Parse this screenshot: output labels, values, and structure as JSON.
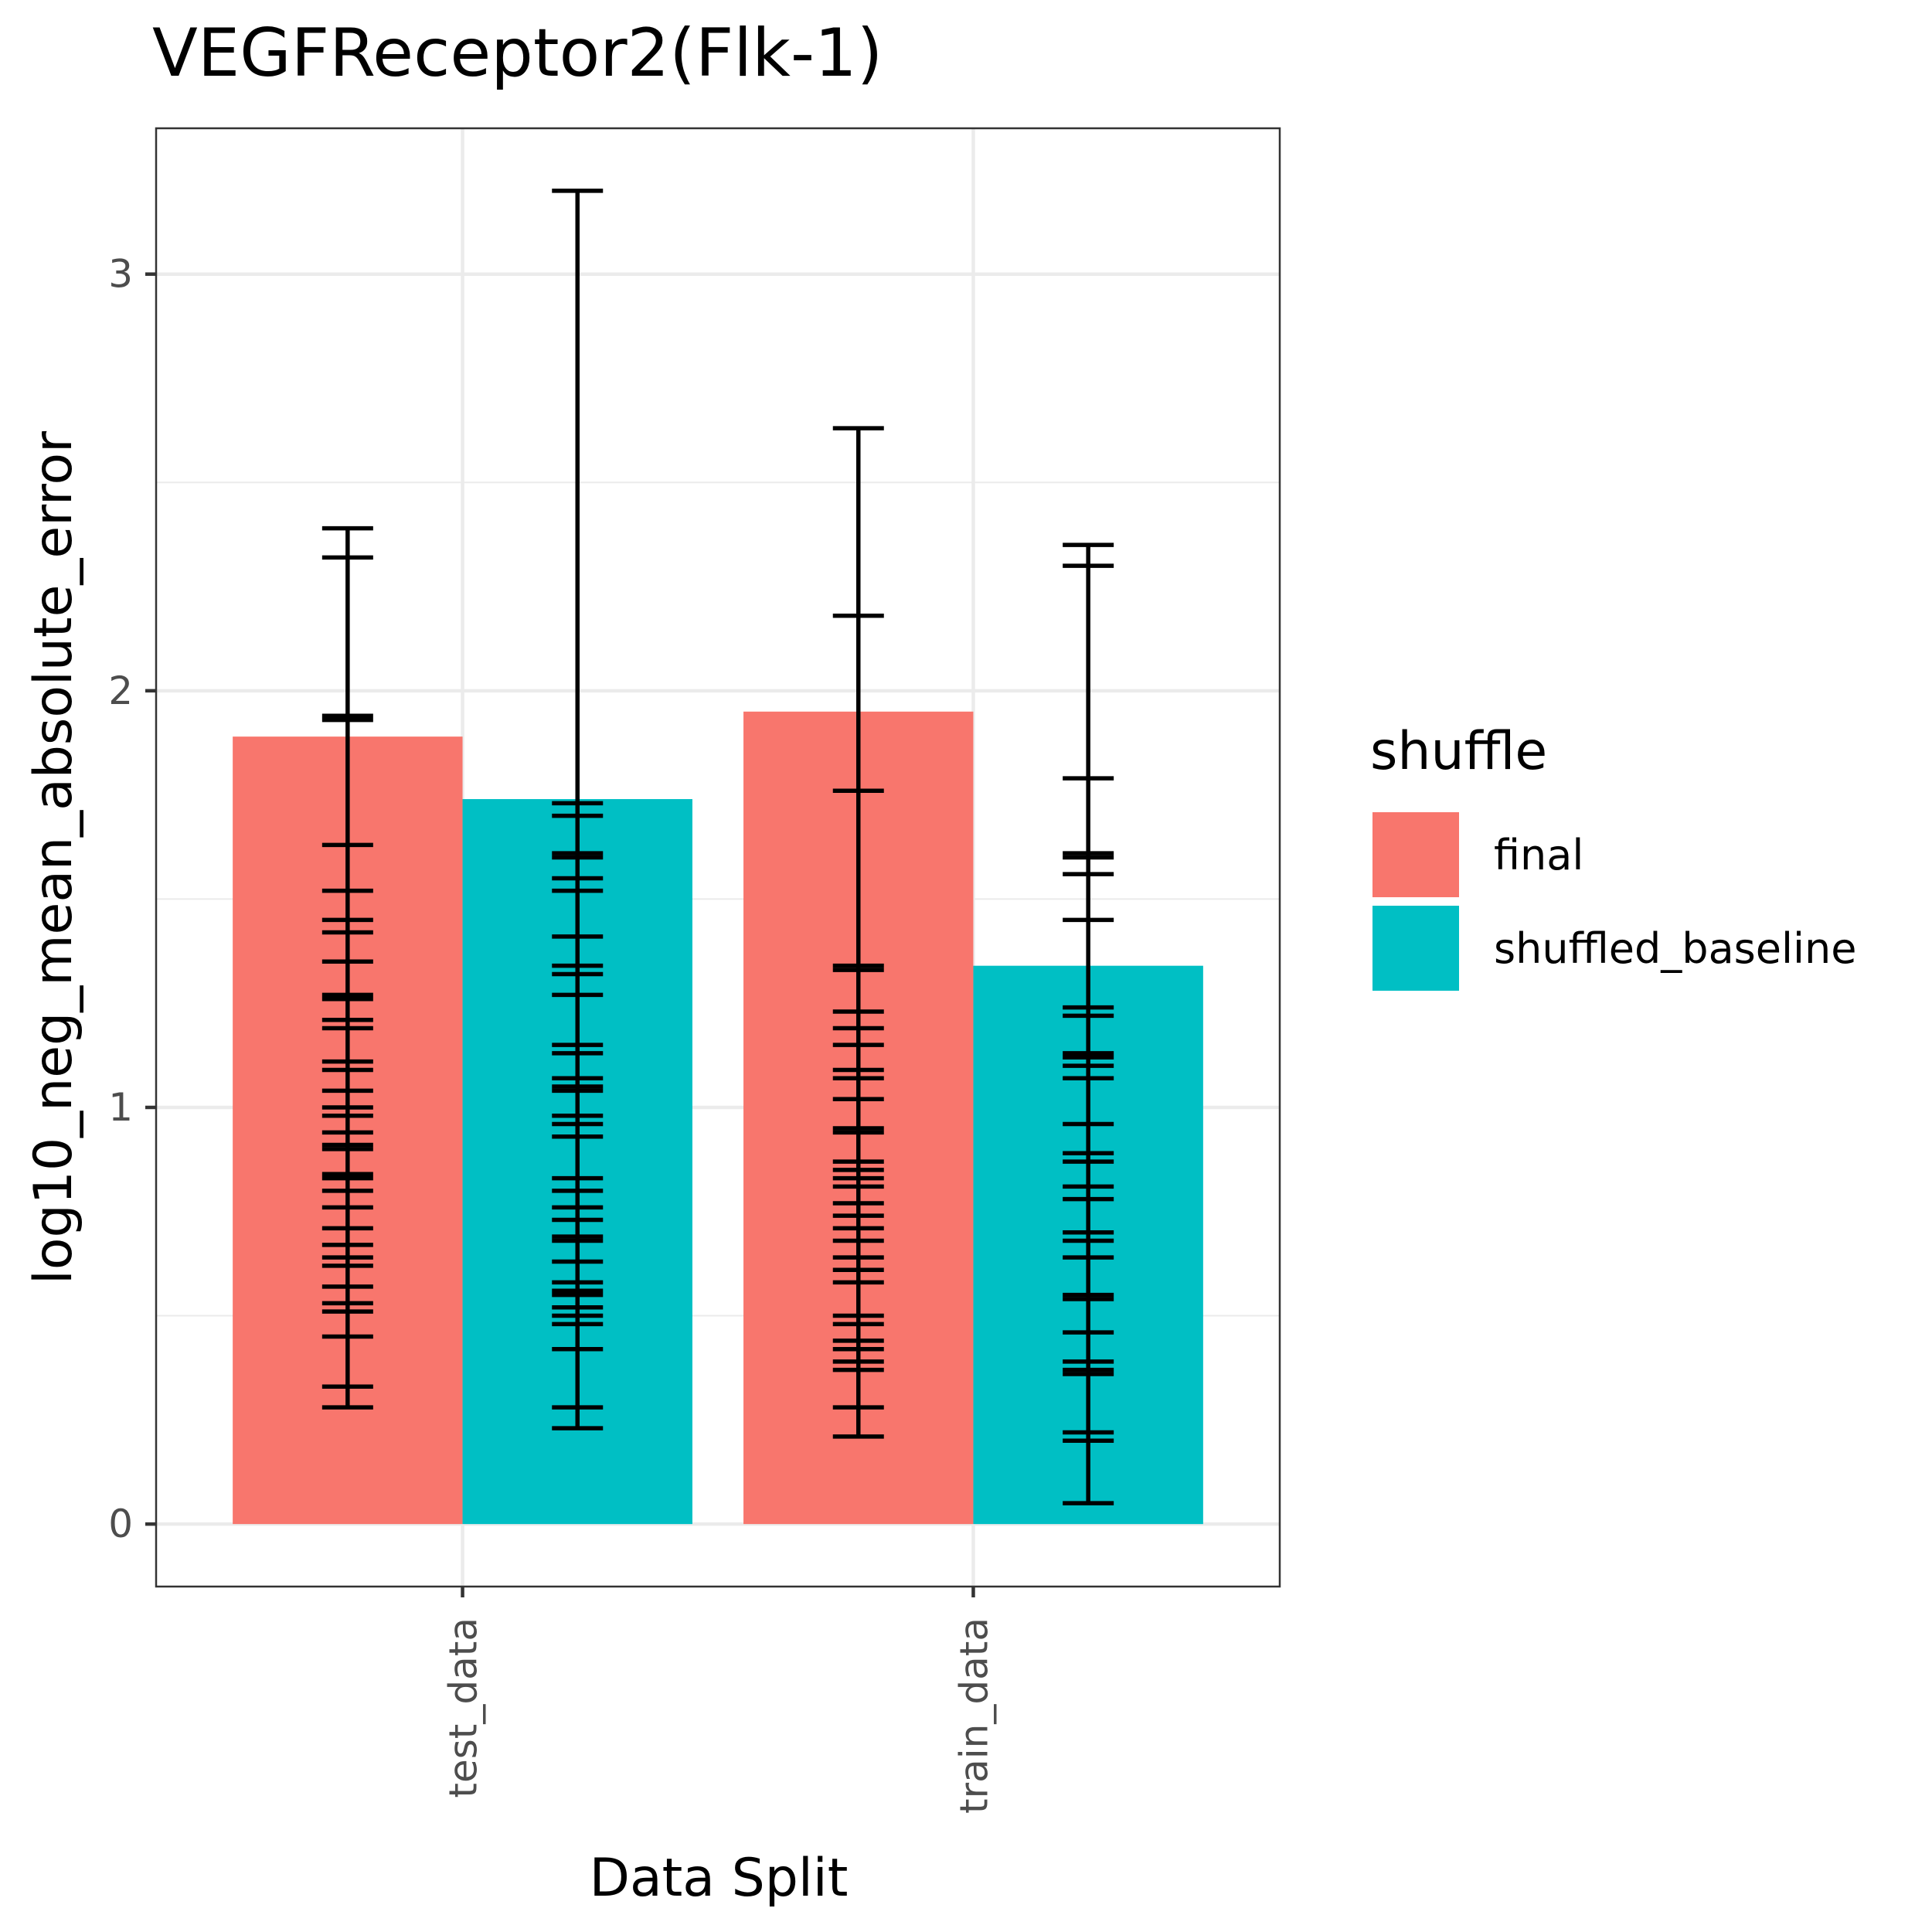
{
  "chart_data": {
    "type": "bar",
    "title": "VEGFReceptor2(Flk-1)",
    "xlabel": "Data Split",
    "ylabel": "log10_neg_mean_absolute_error",
    "categories": [
      "test_data",
      "train_data"
    ],
    "ylim": [
      -0.15,
      3.35
    ],
    "yticks": [
      0,
      1,
      2,
      3
    ],
    "grid": true,
    "legend": {
      "title": "shuffle",
      "position": "right"
    },
    "series": [
      {
        "name": "final",
        "color": "#F8766D",
        "values": [
          1.89,
          1.95
        ],
        "error_caps": [
          [
            2.39,
            2.32,
            1.94,
            1.93,
            1.63,
            1.52,
            1.45,
            1.42,
            1.35,
            1.27,
            1.26,
            1.21,
            1.19,
            1.11,
            1.09,
            1.04,
            1.0,
            0.98,
            0.94,
            0.91,
            0.9,
            0.84,
            0.83,
            0.8,
            0.76,
            0.71,
            0.67,
            0.64,
            0.62,
            0.57,
            0.53,
            0.51,
            0.45,
            0.33,
            0.28
          ],
          [
            2.63,
            2.18,
            1.76,
            1.34,
            1.33,
            1.23,
            1.19,
            1.15,
            1.09,
            1.07,
            1.02,
            0.95,
            0.94,
            0.87,
            0.85,
            0.83,
            0.81,
            0.77,
            0.74,
            0.71,
            0.68,
            0.64,
            0.61,
            0.58,
            0.5,
            0.48,
            0.44,
            0.42,
            0.39,
            0.37,
            0.28,
            0.21
          ]
        ]
      },
      {
        "name": "shuffled_baseline",
        "color": "#00BFC4",
        "values": [
          1.74,
          1.34
        ],
        "error_caps": [
          [
            3.2,
            1.73,
            1.7,
            1.61,
            1.6,
            1.55,
            1.52,
            1.41,
            1.34,
            1.32,
            1.27,
            1.15,
            1.13,
            1.07,
            1.05,
            1.04,
            0.98,
            0.96,
            0.93,
            0.83,
            0.8,
            0.76,
            0.73,
            0.69,
            0.68,
            0.63,
            0.58,
            0.56,
            0.55,
            0.52,
            0.5,
            0.48,
            0.42,
            0.28,
            0.23
          ],
          [
            2.35,
            2.3,
            1.79,
            1.61,
            1.6,
            1.56,
            1.45,
            1.24,
            1.22,
            1.13,
            1.12,
            1.1,
            1.07,
            0.96,
            0.89,
            0.87,
            0.81,
            0.78,
            0.7,
            0.68,
            0.64,
            0.55,
            0.54,
            0.46,
            0.39,
            0.37,
            0.36,
            0.22,
            0.2,
            0.05
          ]
        ]
      }
    ]
  }
}
